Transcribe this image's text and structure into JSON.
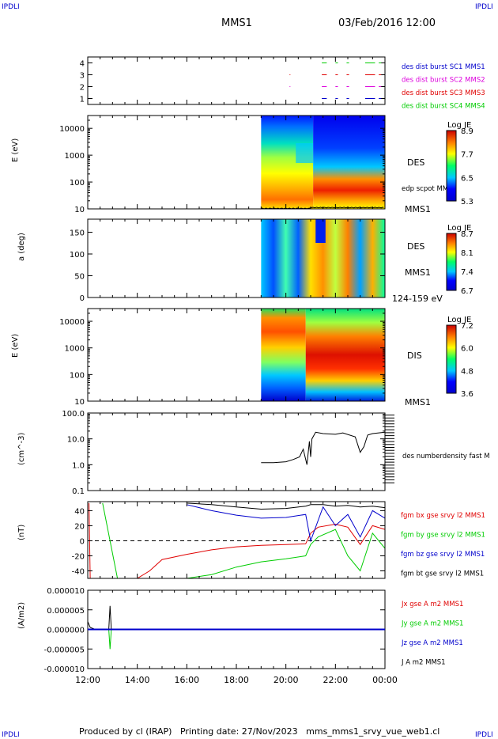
{
  "header": {
    "corner_left": "IPDLI",
    "corner_right": "IPDLI",
    "mission": "MMS1",
    "datetime": "03/Feb/2016 12:00"
  },
  "footer": {
    "text": "Produced by cl (IRAP)   Printing date: 27/Nov/2023   mms_mms1_srvy_vue_web1.cl",
    "corner_left": "IPDLI",
    "corner_right": "IPDLI"
  },
  "time_axis": {
    "ticks": [
      "12:00",
      "14:00",
      "16:00",
      "18:00",
      "20:00",
      "22:00",
      "00:00"
    ],
    "hours": [
      12,
      14,
      16,
      18,
      20,
      22,
      24
    ]
  },
  "colors": {
    "black": "#000000",
    "red": "#e00000",
    "green": "#00cc00",
    "blue": "#0000cc",
    "magenta": "#dd00dd",
    "burst_blue": "#0000ff"
  },
  "chart_data": [
    {
      "type": "scatter",
      "panel": "burst",
      "y_ticks": [
        "4",
        "3",
        "2",
        "1"
      ],
      "ylim": [
        0.5,
        4.5
      ],
      "legend": [
        {
          "text": "des dist burst SC1 MMS1",
          "color": "#0000cc"
        },
        {
          "text": "des dist burst SC2 MMS2",
          "color": "#dd00dd"
        },
        {
          "text": "des dist burst SC3 MMS3",
          "color": "#e00000"
        },
        {
          "text": "des dist burst SC4 MMS4",
          "color": "#00cc00"
        }
      ],
      "series": [
        {
          "y": 4,
          "color": "#00cc00",
          "segments": [
            [
              21.45,
              21.65
            ],
            [
              22.0,
              22.1
            ],
            [
              22.45,
              22.55
            ],
            [
              23.2,
              23.6
            ],
            [
              23.75,
              23.85
            ]
          ]
        },
        {
          "y": 3,
          "color": "#e00000",
          "segments": [
            [
              20.15,
              20.18
            ],
            [
              21.45,
              21.65
            ],
            [
              22.0,
              22.1
            ],
            [
              22.45,
              22.55
            ],
            [
              23.2,
              23.6
            ],
            [
              23.75,
              23.85
            ]
          ]
        },
        {
          "y": 2,
          "color": "#dd00dd",
          "segments": [
            [
              20.15,
              20.18
            ],
            [
              21.45,
              21.65
            ],
            [
              22.0,
              22.1
            ],
            [
              22.45,
              22.55
            ],
            [
              23.2,
              23.6
            ],
            [
              23.75,
              23.85
            ]
          ]
        },
        {
          "y": 1,
          "color": "#0000cc",
          "segments": [
            [
              21.45,
              21.65
            ],
            [
              22.0,
              22.1
            ],
            [
              22.45,
              22.55
            ],
            [
              23.2,
              23.6
            ],
            [
              23.75,
              23.85
            ]
          ]
        }
      ]
    },
    {
      "type": "heatmap",
      "panel": "des_energy",
      "ylabel": "E (eV)",
      "y_ticks": [
        "10000",
        "1000",
        "100",
        "10"
      ],
      "log_y": true,
      "ylim": [
        10,
        30000
      ],
      "right_labels": [
        "DES",
        "edp scpot MMS1",
        "MMS1"
      ],
      "colorbar": {
        "title": "Log JE",
        "ticks": [
          "8.9",
          "7.7",
          "6.5",
          "5.3"
        ],
        "range": [
          5.3,
          8.9
        ]
      },
      "data_start_hour": 19.0,
      "overlay_line_label": "edp scpot MMS1"
    },
    {
      "type": "heatmap",
      "panel": "des_pitch",
      "ylabel": "a (deg)",
      "y_ticks": [
        "150",
        "100",
        "50",
        "0"
      ],
      "ylim": [
        0,
        180
      ],
      "right_labels": [
        "DES",
        "MMS1",
        "124-159 eV"
      ],
      "colorbar": {
        "title": "Log JE",
        "ticks": [
          "8.7",
          "8.1",
          "7.4",
          "6.7"
        ],
        "range": [
          6.7,
          8.7
        ]
      },
      "data_start_hour": 19.0
    },
    {
      "type": "heatmap",
      "panel": "dis_energy",
      "ylabel": "E (eV)",
      "y_ticks": [
        "10000",
        "1000",
        "100",
        "10"
      ],
      "log_y": true,
      "ylim": [
        10,
        30000
      ],
      "right_labels": [
        "DIS",
        "MMS1"
      ],
      "colorbar": {
        "title": "Log JE",
        "ticks": [
          "7.2",
          "6.0",
          "4.8",
          "3.6"
        ],
        "range": [
          3.6,
          7.2
        ]
      },
      "data_start_hour": 19.0
    },
    {
      "type": "line",
      "panel": "density",
      "ylabel": "(cm^-3)",
      "y_ticks": [
        "100.0",
        "10.0",
        "1.0",
        "0.1"
      ],
      "log_y": true,
      "ylim": [
        0.1,
        100
      ],
      "legend": [
        {
          "text": "des numberdensity fast M",
          "color": "#000000"
        }
      ],
      "series": [
        {
          "name": "des numberdensity fast M",
          "color": "#000000",
          "x": [
            19.0,
            19.5,
            20.0,
            20.3,
            20.55,
            20.7,
            20.85,
            20.95,
            21.0,
            21.05,
            21.2,
            21.5,
            22.0,
            22.3,
            22.8,
            23.0,
            23.15,
            23.3,
            23.5,
            24.0
          ],
          "y": [
            1.2,
            1.2,
            1.3,
            1.6,
            2.0,
            4.0,
            1.0,
            8.0,
            2.0,
            10.0,
            18.0,
            16.0,
            15.0,
            17.0,
            12.0,
            3.0,
            5.0,
            14.0,
            16.0,
            18.0
          ]
        }
      ]
    },
    {
      "type": "line",
      "panel": "magnetic_field",
      "ylabel": "(nT)",
      "y_ticks": [
        "40",
        "20",
        "0",
        "-20",
        "-40"
      ],
      "ylim": [
        -50,
        52
      ],
      "legend": [
        {
          "text": "fgm bx gse srvy l2 MMS1",
          "color": "#e00000"
        },
        {
          "text": "fgm by gse srvy l2 MMS1",
          "color": "#00cc00"
        },
        {
          "text": "fgm bz gse srvy l2 MMS1",
          "color": "#0000cc"
        },
        {
          "text": "fgm bt gse srvy l2 MMS1",
          "color": "#000000"
        }
      ],
      "series": [
        {
          "name": "fgm bx gse srvy l2 MMS1",
          "color": "#e00000",
          "x": [
            12.05,
            12.1,
            12.2,
            14.0,
            14.5,
            15.0,
            16.0,
            17.0,
            18.0,
            19.0,
            20.0,
            20.8,
            21.0,
            21.3,
            22.0,
            22.5,
            23.0,
            23.5,
            24.0
          ],
          "y": [
            50,
            -50,
            -50,
            -50,
            -40,
            -25,
            -18,
            -12,
            -8,
            -6,
            -5,
            -4,
            10,
            18,
            22,
            18,
            -5,
            20,
            15
          ]
        },
        {
          "name": "fgm by gse srvy l2 MMS1",
          "color": "#00cc00",
          "x": [
            12.6,
            12.9,
            13.2,
            15.0,
            16.0,
            17.0,
            18.0,
            19.0,
            20.0,
            20.8,
            21.0,
            21.3,
            22.0,
            22.5,
            23.0,
            23.5,
            24.0
          ],
          "y": [
            50,
            0,
            -50,
            -50,
            -50,
            -45,
            -35,
            -28,
            -24,
            -20,
            -5,
            5,
            15,
            -20,
            -40,
            10,
            -10
          ]
        },
        {
          "name": "fgm bz gse srvy l2 MMS1",
          "color": "#0000cc",
          "x": [
            16.0,
            17.0,
            18.0,
            19.0,
            20.0,
            20.8,
            21.0,
            21.5,
            22.0,
            22.5,
            23.0,
            23.5,
            24.0
          ],
          "y": [
            48,
            40,
            34,
            30,
            31,
            35,
            0,
            45,
            20,
            35,
            5,
            40,
            30
          ]
        },
        {
          "name": "fgm bt gse srvy l2 MMS1",
          "color": "#000000",
          "x": [
            16.0,
            17.0,
            18.0,
            19.0,
            20.0,
            20.8,
            21.0,
            21.5,
            22.0,
            22.5,
            23.0,
            23.5,
            24.0
          ],
          "y": [
            50,
            48,
            45,
            42,
            43,
            46,
            48,
            48,
            46,
            47,
            45,
            46,
            44
          ]
        }
      ]
    },
    {
      "type": "line",
      "panel": "current_density",
      "ylabel": "(A/m2)",
      "y_ticks": [
        "0.000010",
        "0.000005",
        "0.000000",
        "-0.000005",
        "-0.000010"
      ],
      "ylim": [
        -1e-05,
        1e-05
      ],
      "legend": [
        {
          "text": "Jx gse A m2 MMS1",
          "color": "#e00000"
        },
        {
          "text": "Jy gse A m2 MMS1",
          "color": "#00cc00"
        },
        {
          "text": "Jz gse A m2 MMS1",
          "color": "#0000cc"
        },
        {
          "text": "J A m2 MMS1",
          "color": "#000000"
        }
      ],
      "series": [
        {
          "name": "J A m2 MMS1",
          "color": "#000000",
          "x": [
            12.0,
            12.1,
            12.3,
            12.85,
            12.9,
            12.95,
            14.0,
            18.0,
            20.0,
            22.0,
            24.0
          ],
          "y": [
            2e-06,
            5e-07,
            0.0,
            0.0,
            6e-06,
            0.0,
            0.0,
            0.0,
            0.0,
            0.0,
            0.0
          ]
        },
        {
          "name": "Jy gse A m2 MMS1",
          "color": "#00cc00",
          "x": [
            12.85,
            12.9,
            12.95
          ],
          "y": [
            0.0,
            -5e-06,
            0.0
          ]
        },
        {
          "name": "Jz gse A m2 MMS1",
          "color": "#0000cc",
          "x": [
            12.0,
            24.0
          ],
          "y": [
            0.0,
            0.0
          ]
        }
      ]
    }
  ]
}
